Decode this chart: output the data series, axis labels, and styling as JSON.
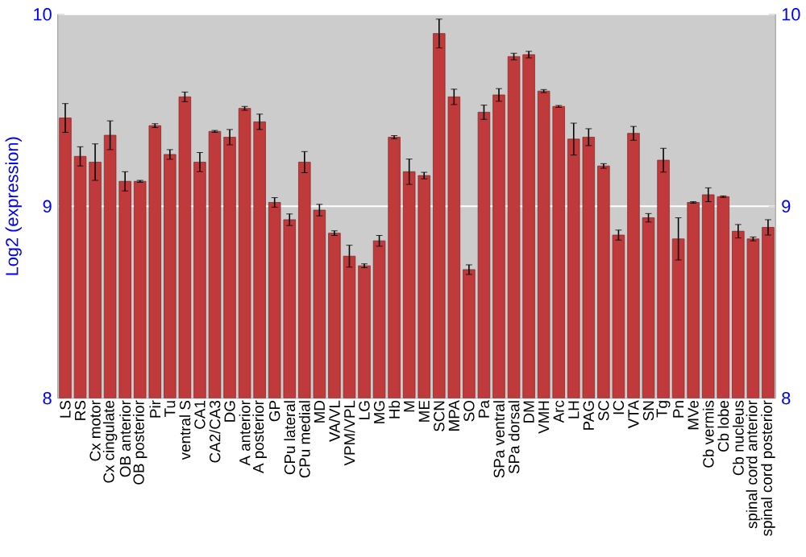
{
  "chart_data": {
    "type": "bar",
    "ylabel": "Log2 (expression)",
    "color": "#c0393b",
    "grid": "y",
    "categories": [
      "LS",
      "RS",
      "Cx motor",
      "Cx cingulate",
      "OB anterior",
      "OB posterior",
      "Pir",
      "Tu",
      "ventral S",
      "CA1",
      "CA2/CA3",
      "DG",
      "A anterior",
      "A posterior",
      "GP",
      "CPu lateral",
      "CPu medial",
      "MD",
      "VA/VL",
      "VPM/VPL",
      "LG",
      "MG",
      "Hb",
      "M",
      "ME",
      "SCN",
      "MPA",
      "SO",
      "Pa",
      "SPa ventral",
      "SPa dorsal",
      "DM",
      "VMH",
      "Arc",
      "LH",
      "PAG",
      "SC",
      "IC",
      "VTA",
      "SN",
      "Tg",
      "Pn",
      "MVe",
      "Cb vermis",
      "Cb lobe",
      "Cb nucleus",
      "spinal cord anterior",
      "spinal cord posterior"
    ],
    "values": [
      9.46,
      9.26,
      9.23,
      9.37,
      9.13,
      9.13,
      9.42,
      9.27,
      9.57,
      9.23,
      9.39,
      9.36,
      9.51,
      9.44,
      9.02,
      8.93,
      9.23,
      8.98,
      8.86,
      8.74,
      8.69,
      8.82,
      9.36,
      9.18,
      9.16,
      9.9,
      9.57,
      8.67,
      9.49,
      9.58,
      9.78,
      9.79,
      9.6,
      9.52,
      9.35,
      9.36,
      9.21,
      8.85,
      9.38,
      8.94,
      9.24,
      8.83,
      9.02,
      9.06,
      9.05,
      8.87,
      8.83,
      8.89
    ],
    "errors": [
      0.075,
      0.05,
      0.095,
      0.075,
      0.05,
      0.005,
      0.01,
      0.025,
      0.025,
      0.05,
      0.005,
      0.04,
      0.01,
      0.04,
      0.025,
      0.03,
      0.055,
      0.03,
      0.012,
      0.057,
      0.01,
      0.028,
      0.008,
      0.066,
      0.017,
      0.075,
      0.04,
      0.025,
      0.037,
      0.033,
      0.017,
      0.017,
      0.008,
      0.005,
      0.083,
      0.044,
      0.012,
      0.026,
      0.036,
      0.022,
      0.062,
      0.11,
      0.004,
      0.036,
      0.004,
      0.035,
      0.01,
      0.04
    ],
    "ylim": [
      8,
      10
    ],
    "yticks": [
      8,
      9,
      10
    ],
    "y2lim": [
      8,
      10
    ],
    "y2ticks": [
      8,
      9,
      10
    ]
  }
}
